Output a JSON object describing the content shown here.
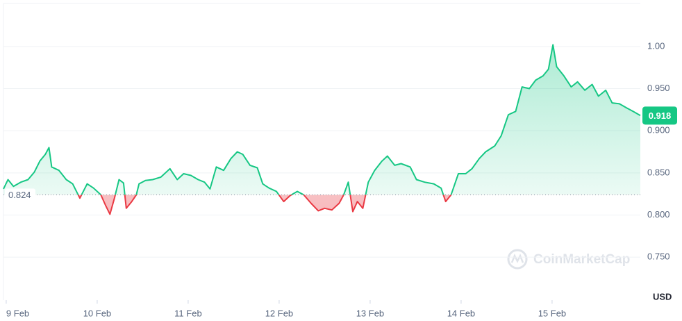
{
  "chart_data": {
    "type": "line",
    "x": [
      8.97,
      9.02,
      9.08,
      9.16,
      9.24,
      9.31,
      9.37,
      9.43,
      9.47,
      9.5,
      9.58,
      9.66,
      9.73,
      9.81,
      9.89,
      9.96,
      10.04,
      10.09,
      10.14,
      10.19,
      10.24,
      10.29,
      10.32,
      10.38,
      10.43,
      10.46,
      10.53,
      10.61,
      10.7,
      10.8,
      10.88,
      10.95,
      11.03,
      11.11,
      11.18,
      11.24,
      11.31,
      11.39,
      11.47,
      11.54,
      11.6,
      11.68,
      11.76,
      11.82,
      11.89,
      11.97,
      12.05,
      12.12,
      12.2,
      12.27,
      12.35,
      12.43,
      12.5,
      12.58,
      12.66,
      12.71,
      12.76,
      12.81,
      12.86,
      12.92,
      12.98,
      13.05,
      13.13,
      13.19,
      13.27,
      13.34,
      13.44,
      13.51,
      13.6,
      13.7,
      13.78,
      13.83,
      13.89,
      13.97,
      14.05,
      14.12,
      14.2,
      14.27,
      14.37,
      14.44,
      14.52,
      14.6,
      14.67,
      14.75,
      14.82,
      14.9,
      14.96,
      15.01,
      15.05,
      15.13,
      15.21,
      15.28,
      15.36,
      15.44,
      15.51,
      15.59,
      15.66,
      15.74,
      15.82,
      15.89,
      15.97
    ],
    "values": [
      0.831,
      0.842,
      0.834,
      0.839,
      0.842,
      0.851,
      0.864,
      0.872,
      0.88,
      0.857,
      0.853,
      0.842,
      0.837,
      0.82,
      0.837,
      0.832,
      0.824,
      0.812,
      0.801,
      0.82,
      0.842,
      0.838,
      0.808,
      0.816,
      0.824,
      0.837,
      0.841,
      0.842,
      0.845,
      0.855,
      0.842,
      0.849,
      0.847,
      0.842,
      0.839,
      0.831,
      0.857,
      0.853,
      0.867,
      0.875,
      0.872,
      0.859,
      0.856,
      0.837,
      0.832,
      0.828,
      0.816,
      0.823,
      0.828,
      0.824,
      0.814,
      0.805,
      0.808,
      0.806,
      0.814,
      0.824,
      0.839,
      0.804,
      0.816,
      0.808,
      0.839,
      0.853,
      0.864,
      0.87,
      0.859,
      0.861,
      0.857,
      0.842,
      0.839,
      0.837,
      0.832,
      0.816,
      0.824,
      0.849,
      0.849,
      0.855,
      0.867,
      0.875,
      0.882,
      0.894,
      0.919,
      0.923,
      0.952,
      0.95,
      0.96,
      0.965,
      0.973,
      1.002,
      0.976,
      0.965,
      0.952,
      0.958,
      0.948,
      0.955,
      0.941,
      0.948,
      0.933,
      0.932,
      0.927,
      0.923,
      0.918
    ],
    "color_up": "#16c784",
    "color_down": "#ea3943",
    "baseline": 0.824,
    "current_price": 0.918,
    "xlim": [
      8.97,
      15.97
    ],
    "ylim": [
      0.699,
      1.051
    ],
    "xticks": [
      {
        "value": 9,
        "label": "9 Feb"
      },
      {
        "value": 10,
        "label": "10 Feb"
      },
      {
        "value": 11,
        "label": "11 Feb"
      },
      {
        "value": 12,
        "label": "12 Feb"
      },
      {
        "value": 13,
        "label": "13 Feb"
      },
      {
        "value": 14,
        "label": "14 Feb"
      },
      {
        "value": 15,
        "label": "15 Feb"
      }
    ],
    "yticks": [
      {
        "value": 0.75,
        "label": "0.750"
      },
      {
        "value": 0.8,
        "label": "0.800"
      },
      {
        "value": 0.85,
        "label": "0.850"
      },
      {
        "value": 0.9,
        "label": "0.900"
      },
      {
        "value": 0.95,
        "label": "0.950"
      },
      {
        "value": 1.0,
        "label": "1.00"
      }
    ],
    "grid": true,
    "y_unit": "USD",
    "watermark": "CoinMarketCap"
  }
}
